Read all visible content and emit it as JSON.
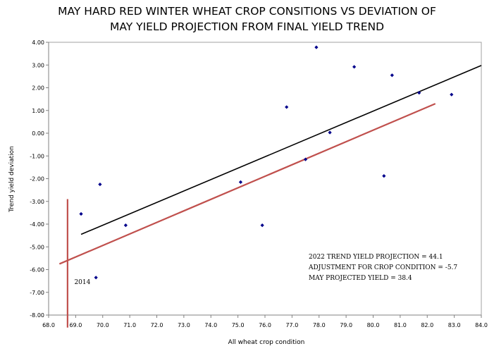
{
  "title_lines": [
    "MAY HARD RED WINTER WHEAT CROP CONSITIONS VS DEVIATION OF",
    "MAY YIELD PROJECTION FROM FINAL YIELD TREND"
  ],
  "chart_data": {
    "type": "scatter",
    "xlabel": "All wheat crop condition",
    "ylabel": "Trend yield deviation",
    "xlim": [
      68.0,
      84.0
    ],
    "ylim": [
      -8.0,
      4.0
    ],
    "x_ticks": [
      "68.0",
      "69.0",
      "70.0",
      "71.0",
      "72.0",
      "73.0",
      "74.0",
      "75.0",
      "76.0",
      "77.0",
      "78.0",
      "79.0",
      "80.0",
      "81.0",
      "82.0",
      "83.0",
      "84.0"
    ],
    "y_ticks": [
      "4.00",
      "3.00",
      "2.00",
      "1.00",
      "0.00",
      "-1.00",
      "-2.00",
      "-3.00",
      "-4.00",
      "-5.00",
      "-6.00",
      "-7.00",
      "-8.00"
    ],
    "points": [
      {
        "x": 69.2,
        "y": -3.55
      },
      {
        "x": 69.75,
        "y": -6.35
      },
      {
        "x": 69.9,
        "y": -2.25
      },
      {
        "x": 70.85,
        "y": -4.05
      },
      {
        "x": 75.1,
        "y": -2.15
      },
      {
        "x": 75.9,
        "y": -4.05
      },
      {
        "x": 76.8,
        "y": 1.15
      },
      {
        "x": 77.5,
        "y": -1.15
      },
      {
        "x": 77.9,
        "y": 3.78
      },
      {
        "x": 78.4,
        "y": 0.03
      },
      {
        "x": 79.3,
        "y": 2.92
      },
      {
        "x": 80.4,
        "y": -1.88
      },
      {
        "x": 80.7,
        "y": 2.55
      },
      {
        "x": 81.7,
        "y": 1.78
      },
      {
        "x": 82.9,
        "y": 1.7
      }
    ],
    "trend_line": {
      "x": [
        69.2,
        84.0
      ],
      "y": [
        -4.45,
        2.98
      ],
      "color": "#000000"
    },
    "shifted_line": {
      "x": [
        68.4,
        82.3
      ],
      "y": [
        -5.75,
        1.3
      ],
      "color": "#c0504d"
    },
    "marker_line": {
      "x": 68.7,
      "y": [
        -8.55,
        -2.9
      ],
      "color": "#c0504d"
    },
    "point_label": {
      "text": "2014",
      "x": 68.95,
      "y": -6.55
    },
    "annotations": [
      "2022 TREND YIELD PROJECTION = 44.1",
      "ADJUSTMENT FOR CROP CONDITION = -5.7",
      "MAY PROJECTED YIELD = 38.4"
    ],
    "point_color": "#00008b",
    "grid": false,
    "legend": "none"
  }
}
